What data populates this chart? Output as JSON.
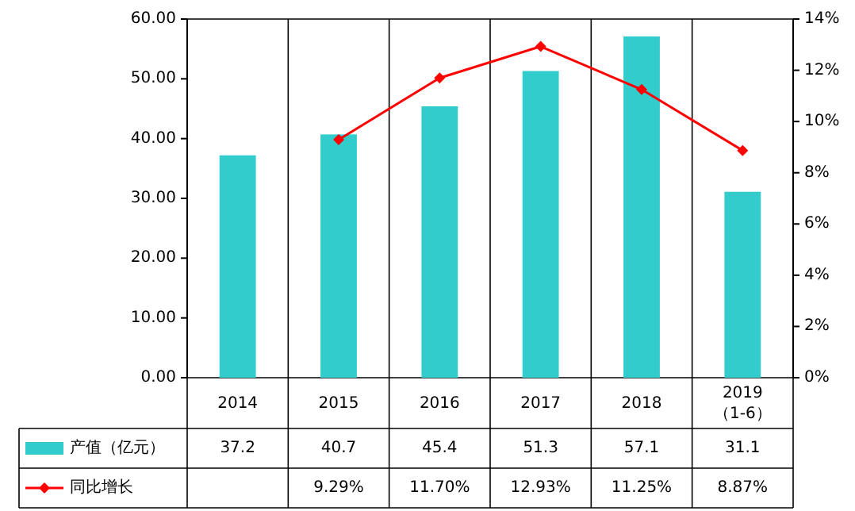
{
  "chart_data": {
    "type": "bar",
    "categories": [
      "2014",
      "2015",
      "2016",
      "2017",
      "2018",
      "2019\n（1-6）"
    ],
    "series": [
      {
        "name": "产值（亿元）",
        "color": "#33cccc",
        "values": [
          37.2,
          40.7,
          45.4,
          51.3,
          57.1,
          31.1
        ],
        "value_labels": [
          "37.2",
          "40.7",
          "45.4",
          "51.3",
          "57.1",
          "31.1"
        ]
      },
      {
        "name": "同比增长",
        "type": "line",
        "axis": "y2",
        "color": "#ff0000",
        "marker": "diamond",
        "values": [
          null,
          9.29,
          11.7,
          12.93,
          11.25,
          8.87
        ],
        "value_labels": [
          null,
          "9.29%",
          "11.70%",
          "12.93%",
          "11.25%",
          "8.87%"
        ]
      }
    ],
    "ylim": [
      0,
      60
    ],
    "yticks": [
      {
        "value": 0,
        "label": "0.00"
      },
      {
        "value": 10,
        "label": "10.00"
      },
      {
        "value": 20,
        "label": "20.00"
      },
      {
        "value": 30,
        "label": "30.00"
      },
      {
        "value": 40,
        "label": "40.00"
      },
      {
        "value": 50,
        "label": "50.00"
      },
      {
        "value": 60,
        "label": "60.00"
      }
    ],
    "y2lim": [
      0,
      14
    ],
    "y2ticks": [
      {
        "value": 0,
        "label": "0%"
      },
      {
        "value": 2,
        "label": "2%"
      },
      {
        "value": 4,
        "label": "4%"
      },
      {
        "value": 6,
        "label": "6%"
      },
      {
        "value": 8,
        "label": "8%"
      },
      {
        "value": 10,
        "label": "10%"
      },
      {
        "value": 12,
        "label": "12%"
      },
      {
        "value": 14,
        "label": "14%"
      }
    ],
    "legend": "bottom"
  }
}
